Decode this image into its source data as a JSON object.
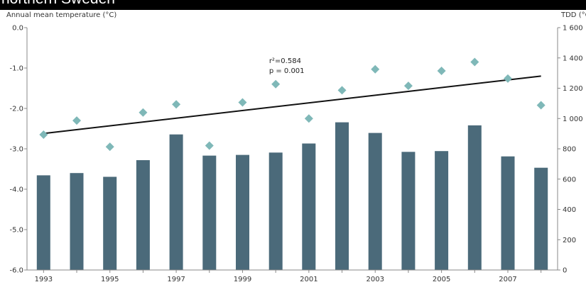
{
  "figure": {
    "title": "northern Sweden"
  },
  "chart_data": {
    "type": "bar",
    "title": "northern Sweden",
    "ylabel_left": "Annual mean temperature (°C)",
    "ylabel_right": "TDD (°C",
    "x_tick_labels": [
      "1993",
      "1995",
      "1997",
      "1999",
      "2001",
      "2003",
      "2005",
      "2007"
    ],
    "years": [
      1993,
      1994,
      1995,
      1996,
      1997,
      1998,
      1999,
      2000,
      2001,
      2002,
      2003,
      2004,
      2005,
      2006,
      2007,
      2008
    ],
    "y_left": {
      "ylim": [
        -6.0,
        0.0
      ],
      "ticks": [
        0.0,
        -1.0,
        -2.0,
        -3.0,
        -4.0,
        -5.0,
        -6.0
      ],
      "tick_labels": [
        "0.0",
        "-1.0",
        "-2.0",
        "-3.0",
        "-4.0",
        "-5.0",
        "-6.0"
      ]
    },
    "y_right": {
      "ylim": [
        0,
        1600
      ],
      "ticks": [
        0,
        200,
        400,
        600,
        800,
        1000,
        1200,
        1400,
        1600
      ],
      "tick_labels": [
        "0",
        "200",
        "400",
        "600",
        "800",
        "1 000",
        "1 200",
        "1 400",
        "1 600"
      ]
    },
    "series": [
      {
        "type": "bar",
        "axis": "right",
        "color": "#4b6a7a",
        "values": [
          625,
          640,
          615,
          725,
          895,
          755,
          760,
          775,
          835,
          975,
          905,
          780,
          785,
          955,
          750,
          675
        ]
      },
      {
        "type": "scatter",
        "axis": "left",
        "color": "#7fb8b8",
        "marker": "diamond",
        "values": [
          -2.65,
          -2.3,
          -2.95,
          -2.1,
          -1.9,
          -2.92,
          -1.85,
          -1.4,
          -2.25,
          -1.55,
          -1.03,
          -1.44,
          -1.07,
          -0.85,
          -1.26,
          -1.92
        ]
      },
      {
        "type": "line",
        "axis": "left",
        "color": "#111111",
        "label": "trend",
        "x": [
          1993,
          2008
        ],
        "values": [
          -2.62,
          -1.2
        ]
      }
    ],
    "annotations": [
      {
        "text": "r²=0.584",
        "x": 1999.8,
        "y": -0.88
      },
      {
        "text": "p = 0.001",
        "x": 1999.8,
        "y": -1.12
      }
    ]
  }
}
